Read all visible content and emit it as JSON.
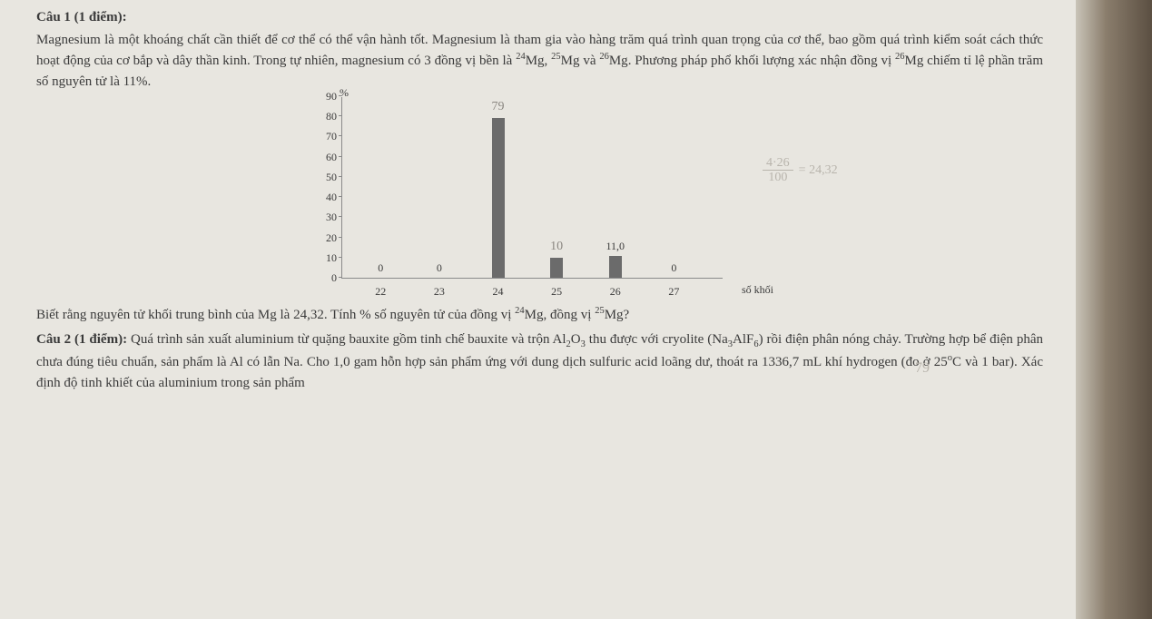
{
  "q1": {
    "title": "Câu 1 (1 điểm):",
    "p1": "Magnesium là một khoáng chất cần thiết để cơ thể có thể vận hành tốt. Magnesium là tham gia vào hàng trăm quá trình quan trọng của cơ thể, bao gồm quá trình kiểm soát cách thức hoạt động của cơ bắp và dây thần kinh. Trong tự nhiên, magnesium có 3 đồng vị bền là ",
    "iso24": "24",
    "iso25": "25",
    "iso26": "26",
    "mg": "Mg",
    "p1b": " và ",
    "p1c": ". Phương pháp phổ khối lượng xác nhận đồng vị ",
    "p1d": "Mg chiếm tỉ lệ phần trăm số nguyên tử là 11%.",
    "p2a": "Biết rằng nguyên tử khối trung bình của Mg là 24,32. Tính % số nguyên tử của đồng vị ",
    "p2b": "Mg, đồng vị ",
    "p2c": "Mg?"
  },
  "chart": {
    "type": "bar",
    "y_unit": "%",
    "ylim_max": 90,
    "ytick_step": 10,
    "yticks": [
      0,
      10,
      20,
      30,
      40,
      50,
      60,
      70,
      80,
      90
    ],
    "x_title": "số khối",
    "categories": [
      "22",
      "23",
      "24",
      "25",
      "26",
      "27"
    ],
    "values": [
      0,
      0,
      79,
      10,
      11.0,
      0
    ],
    "bar_labels": [
      "0",
      "0",
      "79",
      "10",
      "11,0",
      "0"
    ],
    "bar_label_handwritten": [
      false,
      false,
      true,
      true,
      false,
      false
    ],
    "bar_color": "#6b6b6b",
    "axis_color": "#8a8a8a",
    "label_fontsize": 12,
    "background_color": "#e8e6e0"
  },
  "handwriting": {
    "calc_top": "4·26",
    "calc_bot": "100",
    "calc_eq": "= 24,32",
    "seventy_nine": "79"
  },
  "q2": {
    "title": "Câu 2 (1 điểm):",
    "text1": " Quá trình sản xuất aluminium từ quặng bauxite gồm tinh chế bauxite và trộn Al",
    "al2o3_2": "2",
    "o": "O",
    "al2o3_3": "3",
    "text2": " thu được với cryolite (Na",
    "na3": "3",
    "alf": "AlF",
    "f6": "6",
    "text3": ") rồi điện phân nóng chảy. Trường hợp bể điện phân chưa đúng tiêu chuẩn, sản phẩm là Al có lẫn Na. Cho 1,0 gam hỗn hợp sản phẩm ứng với dung dịch sulfuric acid loãng dư, thoát ra 1336,7 mL khí hydrogen (đo ở 25",
    "deg": "o",
    "text4": "C và 1 bar). Xác định độ tinh khiết của aluminium trong sản phẩm"
  }
}
